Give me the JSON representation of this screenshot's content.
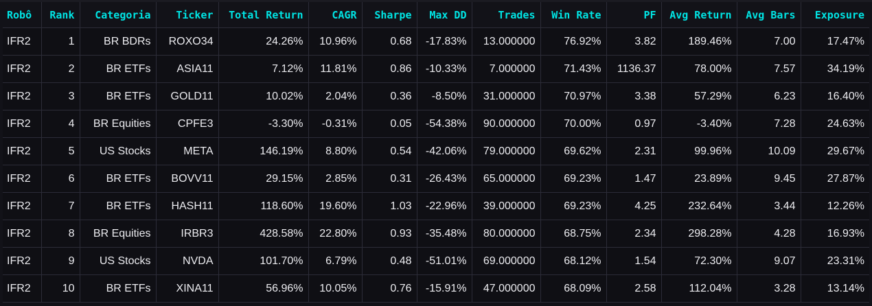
{
  "columns": [
    "Robô",
    "Rank",
    "Categoria",
    "Ticker",
    "Total Return",
    "CAGR",
    "Sharpe",
    "Max DD",
    "Trades",
    "Win Rate",
    "PF",
    "Avg Return",
    "Avg Bars",
    "Exposure"
  ],
  "rows": [
    [
      "IFR2",
      "1",
      "BR BDRs",
      "ROXO34",
      "24.26%",
      "10.96%",
      "0.68",
      "-17.83%",
      "13.000000",
      "76.92%",
      "3.82",
      "189.46%",
      "7.00",
      "17.47%"
    ],
    [
      "IFR2",
      "2",
      "BR ETFs",
      "ASIA11",
      "7.12%",
      "11.81%",
      "0.86",
      "-10.33%",
      "7.000000",
      "71.43%",
      "1136.37",
      "78.00%",
      "7.57",
      "34.19%"
    ],
    [
      "IFR2",
      "3",
      "BR ETFs",
      "GOLD11",
      "10.02%",
      "2.04%",
      "0.36",
      "-8.50%",
      "31.000000",
      "70.97%",
      "3.38",
      "57.29%",
      "6.23",
      "16.40%"
    ],
    [
      "IFR2",
      "4",
      "BR Equities",
      "CPFE3",
      "-3.30%",
      "-0.31%",
      "0.05",
      "-54.38%",
      "90.000000",
      "70.00%",
      "0.97",
      "-3.40%",
      "7.28",
      "24.63%"
    ],
    [
      "IFR2",
      "5",
      "US Stocks",
      "META",
      "146.19%",
      "8.80%",
      "0.54",
      "-42.06%",
      "79.000000",
      "69.62%",
      "2.31",
      "99.96%",
      "10.09",
      "29.67%"
    ],
    [
      "IFR2",
      "6",
      "BR ETFs",
      "BOVV11",
      "29.15%",
      "2.85%",
      "0.31",
      "-26.43%",
      "65.000000",
      "69.23%",
      "1.47",
      "23.89%",
      "9.45",
      "27.87%"
    ],
    [
      "IFR2",
      "7",
      "BR ETFs",
      "HASH11",
      "118.60%",
      "19.60%",
      "1.03",
      "-22.96%",
      "39.000000",
      "69.23%",
      "4.25",
      "232.64%",
      "3.44",
      "12.26%"
    ],
    [
      "IFR2",
      "8",
      "BR Equities",
      "IRBR3",
      "428.58%",
      "22.80%",
      "0.93",
      "-35.48%",
      "80.000000",
      "68.75%",
      "2.34",
      "298.28%",
      "4.28",
      "16.93%"
    ],
    [
      "IFR2",
      "9",
      "US Stocks",
      "NVDA",
      "101.70%",
      "6.79%",
      "0.48",
      "-51.01%",
      "69.000000",
      "68.12%",
      "1.54",
      "72.30%",
      "9.07",
      "23.31%"
    ],
    [
      "IFR2",
      "10",
      "BR ETFs",
      "XINA11",
      "56.96%",
      "10.05%",
      "0.76",
      "-15.91%",
      "47.000000",
      "68.09%",
      "2.58",
      "112.04%",
      "3.28",
      "13.14%"
    ]
  ],
  "colors": {
    "background": "#121218",
    "header_text": "#00e5e5",
    "cell_text": "#ececf0",
    "grid": "#2c2c38"
  }
}
